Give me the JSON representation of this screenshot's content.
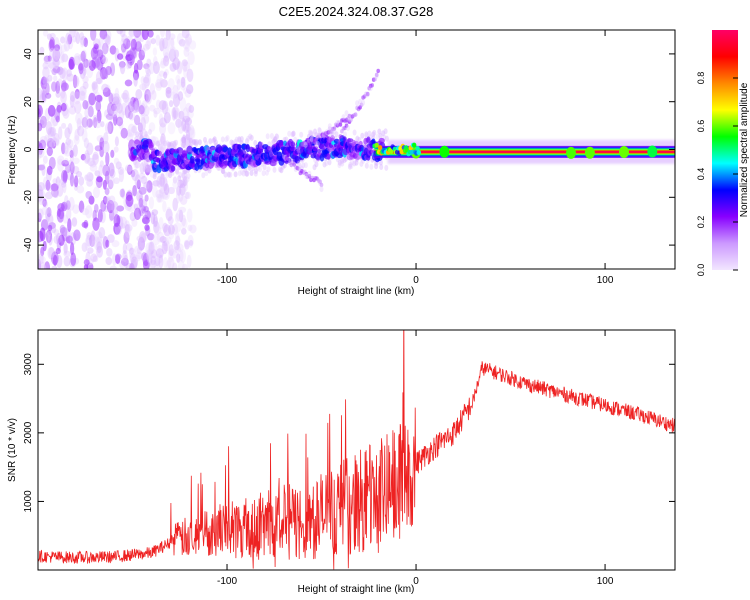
{
  "title": "C2E5.2024.324.08.37.G28",
  "colors": {
    "snr_line": "#ee2222",
    "axis": "#000000",
    "background": "#ffffff",
    "colormap": [
      "#f2e6ff",
      "#cc99ff",
      "#8800ff",
      "#0000ff",
      "#00ffff",
      "#00ff00",
      "#ffff00",
      "#ff8800",
      "#ff0000",
      "#ff0066"
    ]
  },
  "chart_data": [
    {
      "type": "heatmap",
      "title": "C2E5.2024.324.08.37.G28",
      "xlabel": "Height of straight line (km)",
      "ylabel": "Frequency (Hz)",
      "xlim": [
        -200,
        137
      ],
      "ylim": [
        -50,
        50
      ],
      "x_ticks": [
        -100,
        0,
        100
      ],
      "y_ticks": [
        -40,
        -20,
        0,
        20,
        40
      ],
      "grid": false,
      "colorbar": {
        "label": "Normalized spectral amplitude",
        "range": [
          0,
          1
        ],
        "ticks": [
          "0.0",
          "0.2",
          "0.4",
          "0.6",
          "0.8"
        ]
      },
      "features": {
        "noise_region_x": [
          -200,
          -130
        ],
        "main_trace": [
          {
            "x": -140,
            "y": -5
          },
          {
            "x": -120,
            "y": -4
          },
          {
            "x": -100,
            "y": -3
          },
          {
            "x": -80,
            "y": -2
          },
          {
            "x": -60,
            "y": 0
          },
          {
            "x": -40,
            "y": 1
          },
          {
            "x": -20,
            "y": 0
          },
          {
            "x": 0,
            "y": -1
          },
          {
            "x": 137,
            "y": -1
          }
        ],
        "upper_branches": [
          [
            {
              "x": -40,
              "y": 6
            },
            {
              "x": -30,
              "y": 18
            },
            {
              "x": -20,
              "y": 32
            }
          ],
          [
            {
              "x": -60,
              "y": 2
            },
            {
              "x": -45,
              "y": 8
            },
            {
              "x": -35,
              "y": 14
            }
          ]
        ],
        "lower_branch": [
          {
            "x": -70,
            "y": -3
          },
          {
            "x": -60,
            "y": -10
          },
          {
            "x": -50,
            "y": -14
          }
        ]
      }
    },
    {
      "type": "line",
      "xlabel": "Height of straight line (km)",
      "ylabel": "SNR (10 * v/v)",
      "xlim": [
        -200,
        137
      ],
      "ylim": [
        0,
        3500
      ],
      "x_ticks": [
        -100,
        0,
        100
      ],
      "y_ticks": [
        1000,
        2000,
        3000
      ],
      "grid": false,
      "series": [
        {
          "x": [
            -200,
            -180,
            -160,
            -140,
            -130,
            -120,
            -100,
            -85,
            -70,
            -60,
            -50,
            -40,
            -30,
            -20,
            -10,
            -5,
            0,
            10,
            20,
            30,
            35,
            40,
            60,
            80,
            100,
            120,
            137
          ],
          "values": [
            200,
            180,
            190,
            250,
            400,
            500,
            600,
            650,
            700,
            700,
            800,
            900,
            1000,
            1100,
            1250,
            1400,
            1550,
            1800,
            2000,
            2450,
            2950,
            2900,
            2700,
            2550,
            2400,
            2250,
            2100
          ]
        }
      ]
    }
  ]
}
